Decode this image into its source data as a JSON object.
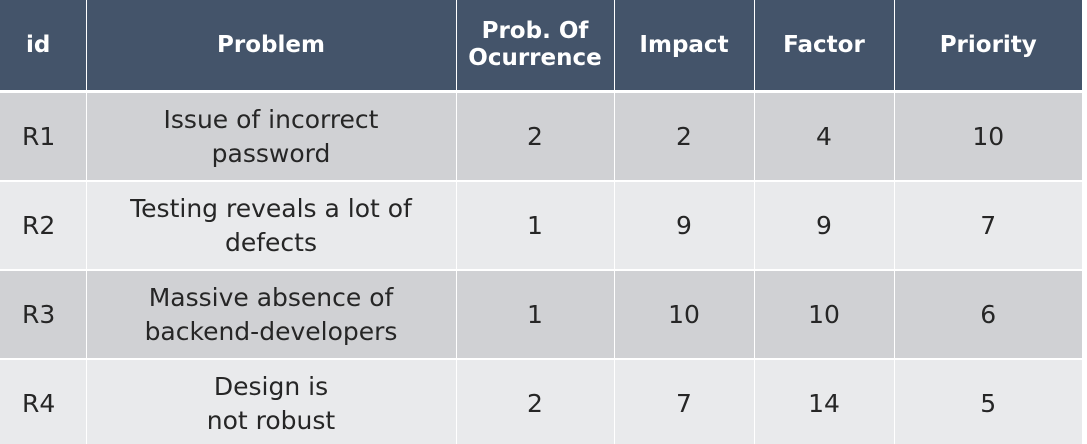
{
  "headers": [
    "id",
    "Problem",
    "Prob. Of Ocurrence",
    "Impact",
    "Factor",
    "Priority"
  ],
  "header_prob_line1": "Prob. Of",
  "header_prob_line2": "Ocurrence",
  "rows": [
    {
      "id": "R1",
      "problem": "Issue of incorrect password",
      "prob": "2",
      "impact": "2",
      "factor": "4",
      "priority": "10"
    },
    {
      "id": "R2",
      "problem": "Testing reveals a lot of defects",
      "prob": "1",
      "impact": "9",
      "factor": "9",
      "priority": "7"
    },
    {
      "id": "R3",
      "problem": "Massive absence of backend-developers",
      "prob": "1",
      "impact": "10",
      "factor": "10",
      "priority": "6"
    },
    {
      "id": "R4",
      "problem": "Design is not robust",
      "prob": "2",
      "impact": "7",
      "factor": "14",
      "priority": "5"
    }
  ],
  "colors": {
    "header_bg": "#44546a",
    "row_dark": "#d0d1d4",
    "row_light": "#e9eaec",
    "text": "#262626"
  }
}
